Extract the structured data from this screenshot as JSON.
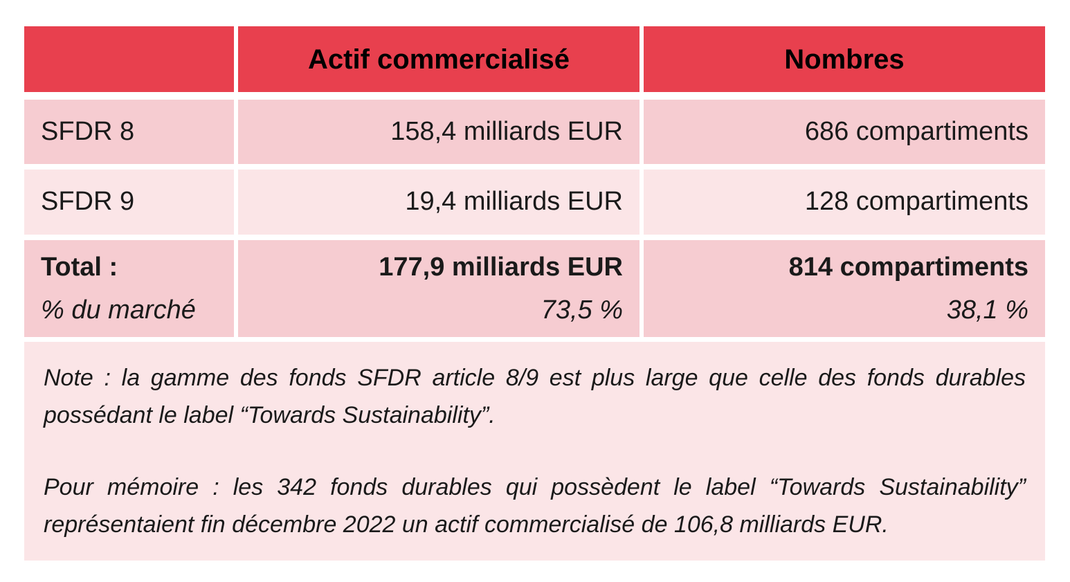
{
  "colors": {
    "header_red": "#E8404E",
    "row_pink": "#F6CCD1",
    "row_light_pink": "#FBE5E7",
    "text_dark": "#1A1A1A"
  },
  "table": {
    "header": {
      "actif_label": "Actif commercialisé",
      "nombres_label": "Nombres"
    },
    "rows": [
      {
        "label": "SFDR 8",
        "actif": "158,4 milliards EUR",
        "nombres": "686 compartiments"
      },
      {
        "label": "SFDR 9",
        "actif": "19,4 milliards EUR",
        "nombres": "128 compartiments"
      }
    ],
    "total_row": {
      "label": "Total :",
      "sublabel": "% du marché",
      "actif_value": "177,9 milliards EUR",
      "actif_pct": "73,5 %",
      "nombres_value": "814 compartiments",
      "nombres_pct": "38,1 %"
    }
  },
  "note": {
    "paragraph1": "Note : la gamme des fonds SFDR article 8/9 est plus large que celle des fonds durables possédant le label “Towards Sustainability”.",
    "paragraph2": "Pour mémoire : les 342 fonds durables qui possèdent le label “Towards Sustainability” représentaient fin décembre 2022 un actif commercialisé de 106,8 milliards EUR."
  }
}
